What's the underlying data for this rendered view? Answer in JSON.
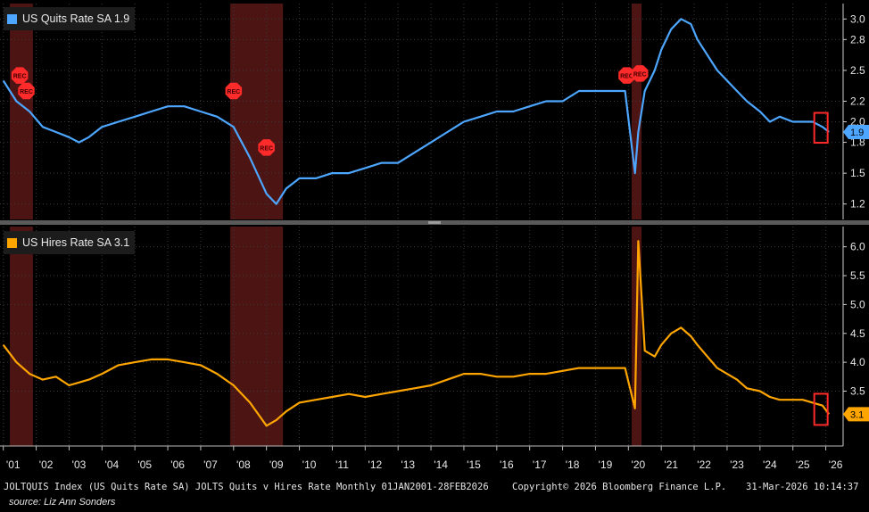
{
  "chart_data": [
    {
      "type": "line",
      "legend": "US Quits Rate SA 1.9",
      "last_value": "1.9",
      "color": "#4da6ff",
      "ylim": [
        1.05,
        3.15
      ],
      "yticks": [
        "1.2",
        "1.5",
        "1.8",
        "2.0",
        "2.2",
        "2.5",
        "2.8",
        "3.0"
      ],
      "ytick_values": [
        1.2,
        1.5,
        1.8,
        2.0,
        2.2,
        2.5,
        2.8,
        3.0
      ],
      "x": [
        2001.0,
        2001.4,
        2001.8,
        2002.2,
        2002.6,
        2003.0,
        2003.3,
        2003.6,
        2004.0,
        2004.5,
        2005.0,
        2005.5,
        2006.0,
        2006.5,
        2007.0,
        2007.5,
        2008.0,
        2008.5,
        2009.0,
        2009.3,
        2009.6,
        2010.0,
        2010.5,
        2011.0,
        2011.5,
        2012.0,
        2012.5,
        2013.0,
        2013.5,
        2014.0,
        2014.5,
        2015.0,
        2015.5,
        2016.0,
        2016.5,
        2017.0,
        2017.5,
        2018.0,
        2018.5,
        2019.0,
        2019.5,
        2019.9,
        2020.2,
        2020.3,
        2020.5,
        2020.8,
        2021.0,
        2021.3,
        2021.6,
        2021.9,
        2022.1,
        2022.4,
        2022.7,
        2023.0,
        2023.3,
        2023.6,
        2024.0,
        2024.3,
        2024.6,
        2025.0,
        2025.3,
        2025.6,
        2025.9,
        2026.1
      ],
      "values": [
        2.4,
        2.2,
        2.1,
        1.95,
        1.9,
        1.85,
        1.8,
        1.85,
        1.95,
        2.0,
        2.05,
        2.1,
        2.15,
        2.15,
        2.1,
        2.05,
        1.95,
        1.65,
        1.3,
        1.2,
        1.35,
        1.45,
        1.45,
        1.5,
        1.5,
        1.55,
        1.6,
        1.6,
        1.7,
        1.8,
        1.9,
        2.0,
        2.05,
        2.1,
        2.1,
        2.15,
        2.2,
        2.2,
        2.3,
        2.3,
        2.3,
        2.3,
        1.5,
        1.9,
        2.3,
        2.5,
        2.7,
        2.9,
        3.0,
        2.95,
        2.8,
        2.65,
        2.5,
        2.4,
        2.3,
        2.2,
        2.1,
        2.0,
        2.05,
        2.0,
        2.0,
        2.0,
        1.95,
        1.9
      ]
    },
    {
      "type": "line",
      "legend": "US Hires Rate SA 3.1",
      "last_value": "3.1",
      "color": "#ffa500",
      "ylim": [
        2.55,
        6.35
      ],
      "yticks": [
        "3.5",
        "4.0",
        "4.5",
        "5.0",
        "5.5",
        "6.0"
      ],
      "ytick_values": [
        3.5,
        4.0,
        4.5,
        5.0,
        5.5,
        6.0
      ],
      "x": [
        2001.0,
        2001.4,
        2001.8,
        2002.2,
        2002.6,
        2003.0,
        2003.3,
        2003.6,
        2004.0,
        2004.5,
        2005.0,
        2005.5,
        2006.0,
        2006.5,
        2007.0,
        2007.5,
        2008.0,
        2008.5,
        2009.0,
        2009.3,
        2009.6,
        2010.0,
        2010.5,
        2011.0,
        2011.5,
        2012.0,
        2012.5,
        2013.0,
        2013.5,
        2014.0,
        2014.5,
        2015.0,
        2015.5,
        2016.0,
        2016.5,
        2017.0,
        2017.5,
        2018.0,
        2018.5,
        2019.0,
        2019.5,
        2019.9,
        2020.2,
        2020.3,
        2020.5,
        2020.8,
        2021.0,
        2021.3,
        2021.6,
        2021.9,
        2022.1,
        2022.4,
        2022.7,
        2023.0,
        2023.3,
        2023.6,
        2024.0,
        2024.3,
        2024.6,
        2025.0,
        2025.3,
        2025.6,
        2025.9,
        2026.1
      ],
      "values": [
        4.3,
        4.0,
        3.8,
        3.7,
        3.75,
        3.6,
        3.65,
        3.7,
        3.8,
        3.95,
        4.0,
        4.05,
        4.05,
        4.0,
        3.95,
        3.8,
        3.6,
        3.3,
        2.9,
        3.0,
        3.15,
        3.3,
        3.35,
        3.4,
        3.45,
        3.4,
        3.45,
        3.5,
        3.55,
        3.6,
        3.7,
        3.8,
        3.8,
        3.75,
        3.75,
        3.8,
        3.8,
        3.85,
        3.9,
        3.9,
        3.9,
        3.9,
        3.2,
        6.1,
        4.2,
        4.1,
        4.3,
        4.5,
        4.6,
        4.45,
        4.3,
        4.1,
        3.9,
        3.8,
        3.7,
        3.55,
        3.5,
        3.4,
        3.35,
        3.35,
        3.35,
        3.3,
        3.25,
        3.1
      ]
    }
  ],
  "x_axis": {
    "labels": [
      "'01",
      "'02",
      "'03",
      "'04",
      "'05",
      "'06",
      "'07",
      "'08",
      "'09",
      "'10",
      "'11",
      "'12",
      "'13",
      "'14",
      "'15",
      "'16",
      "'17",
      "'18",
      "'19",
      "'20",
      "'21",
      "'22",
      "'23",
      "'24",
      "'25",
      "'26"
    ],
    "label_years": [
      2001.3,
      2002.3,
      2003.3,
      2004.3,
      2005.3,
      2006.3,
      2007.3,
      2008.3,
      2009.3,
      2010.3,
      2011.3,
      2012.3,
      2013.3,
      2014.3,
      2015.3,
      2016.3,
      2017.3,
      2018.3,
      2019.3,
      2020.3,
      2021.3,
      2022.3,
      2023.3,
      2024.3,
      2025.3,
      2026.3
    ],
    "range": [
      2000.9,
      2026.5
    ]
  },
  "recessions": [
    {
      "start": 2001.2,
      "end": 2001.9
    },
    {
      "start": 2007.9,
      "end": 2009.5
    },
    {
      "start": 2020.1,
      "end": 2020.4
    }
  ],
  "rec_label": "REC",
  "highlight_start": 2025.65,
  "footer_left": "JOLTQUIS Index (US Quits Rate SA) JOLTS Quits v Hires Rate Monthly 01JAN2001-28FEB2026",
  "footer_mid": "Copyright© 2026 Bloomberg Finance L.P.",
  "footer_right": "31-Mar-2026 10:14:37",
  "source": "source: Liz Ann Sonders"
}
